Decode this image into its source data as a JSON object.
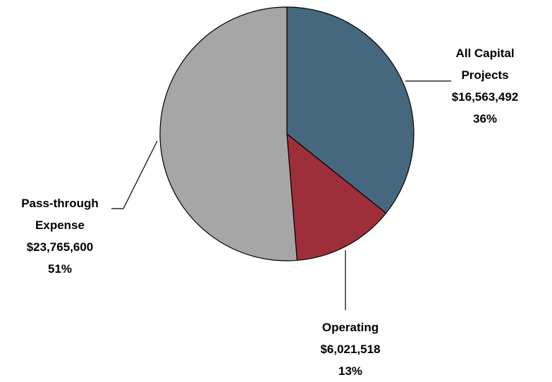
{
  "chart_data": {
    "type": "pie",
    "categories": [
      "All Capital Projects",
      "Operating",
      "Pass-through Expense"
    ],
    "values": [
      16563492,
      6021518,
      23765600
    ],
    "value_labels": [
      "$16,563,492",
      "$6,021,518",
      "$23,765,600"
    ],
    "percent_labels": [
      "36%",
      "13%",
      "51%"
    ],
    "colors": [
      "#46687e",
      "#9e2f3a",
      "#a6a6a6"
    ]
  }
}
